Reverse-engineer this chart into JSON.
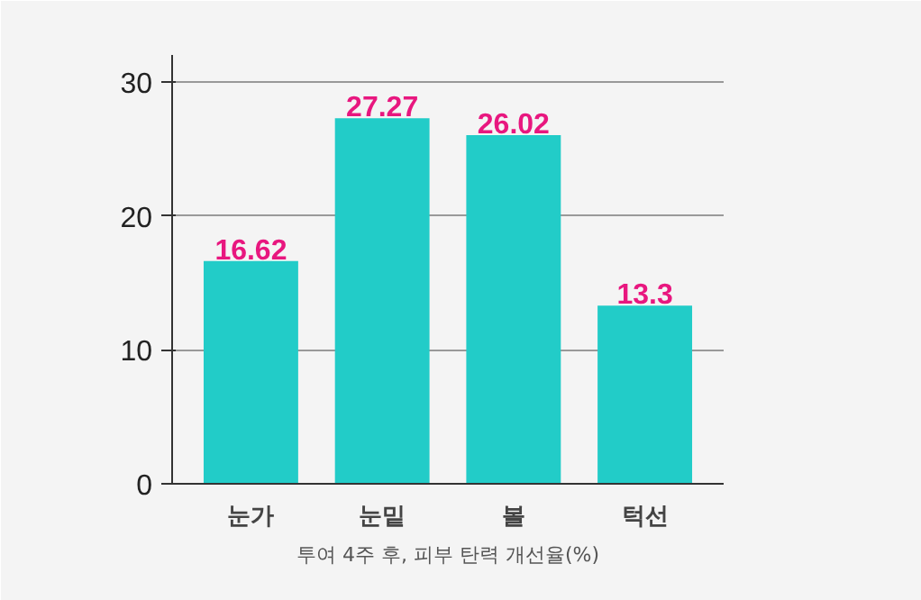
{
  "chart_data": {
    "type": "bar",
    "categories": [
      "눈가",
      "눈밑",
      "볼",
      "턱선"
    ],
    "values": [
      16.62,
      27.27,
      26.02,
      13.3
    ],
    "value_labels": [
      "16.62",
      "27.27",
      "26.02",
      "13.3"
    ],
    "color": "#22ccc8",
    "xlabel": "투여 4주 후, 피부 탄력 개선율(%)",
    "ylim": [
      0,
      32
    ],
    "yticks": [
      0,
      10,
      20,
      30
    ],
    "grid": "y"
  }
}
